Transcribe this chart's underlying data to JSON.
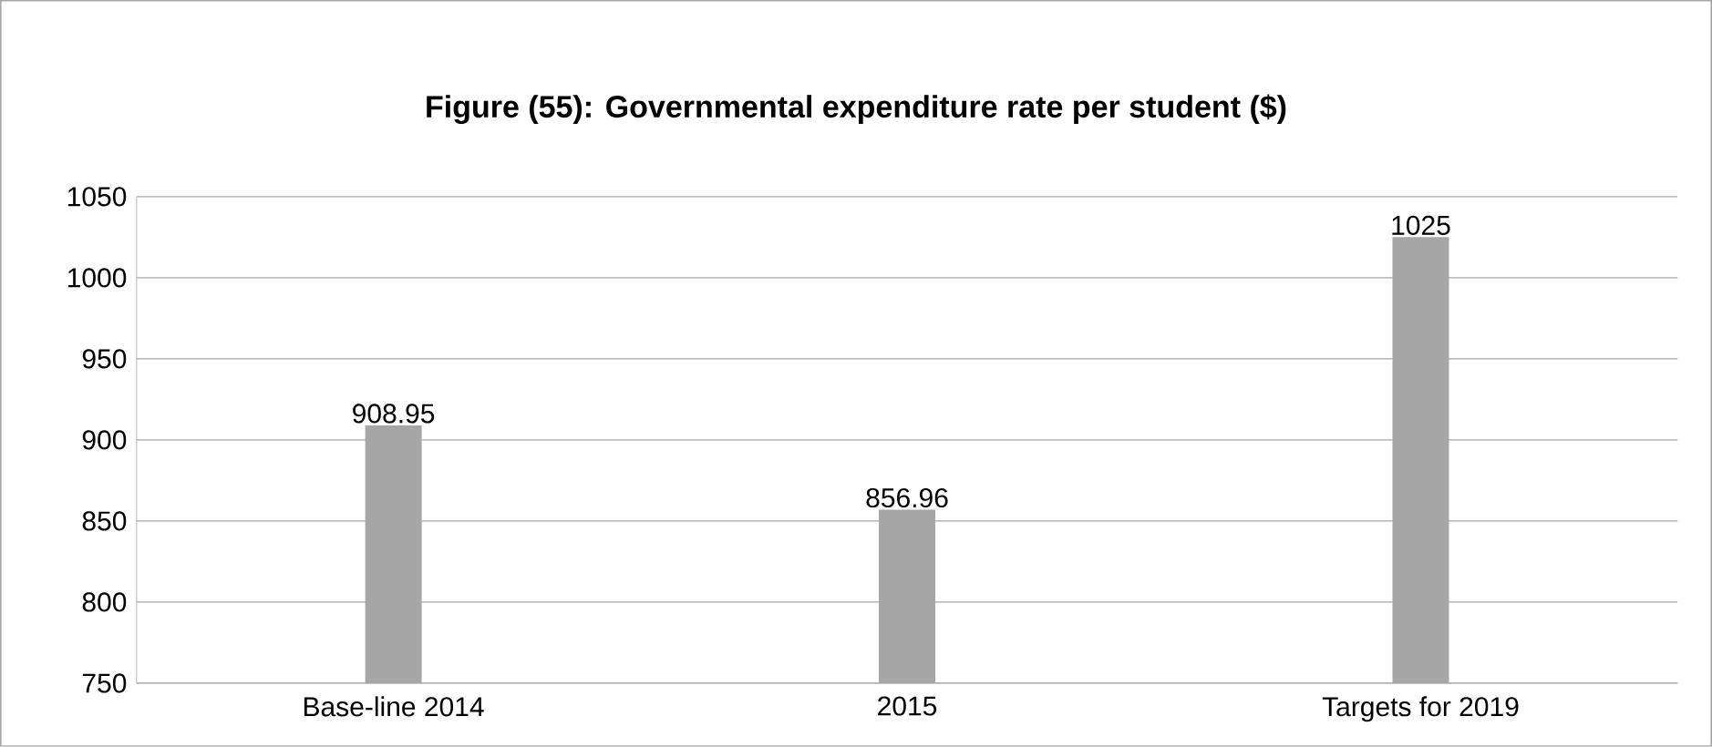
{
  "chart_data": {
    "type": "bar",
    "title": "Figure (55): Governmental expenditure rate per student ($)",
    "categories": [
      "Base-line 2014",
      "2015",
      "Targets for 2019"
    ],
    "values": [
      908.95,
      856.96,
      1025
    ],
    "color": "#a6a6a6",
    "ylim": [
      750,
      1050
    ],
    "yticks": [
      750,
      800,
      850,
      900,
      950,
      1000,
      1050
    ],
    "grid": "y",
    "data_labels": true
  }
}
